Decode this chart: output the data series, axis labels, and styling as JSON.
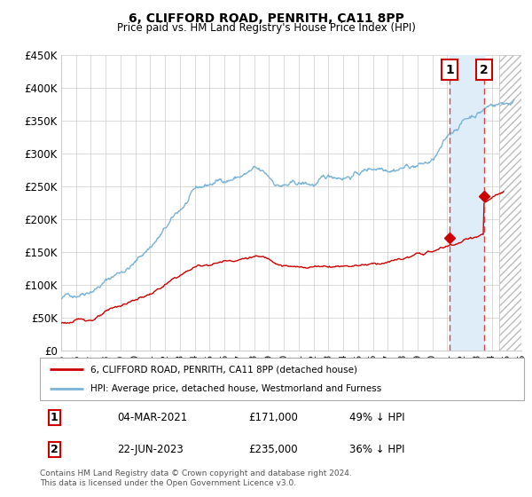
{
  "title": "6, CLIFFORD ROAD, PENRITH, CA11 8PP",
  "subtitle": "Price paid vs. HM Land Registry's House Price Index (HPI)",
  "xmin": 1995.0,
  "xmax": 2026.0,
  "ymin": 0,
  "ymax": 450000,
  "hpi_color": "#7ab4d8",
  "price_color": "#cc0000",
  "marker_color": "#cc0000",
  "dashed_line_color": "#dd4444",
  "highlight_fill": "#deedf8",
  "point1_x": 2021.17,
  "point1_y": 171000,
  "point1_label": "1",
  "point1_date": "04-MAR-2021",
  "point1_price": "£171,000",
  "point1_note": "49% ↓ HPI",
  "point2_x": 2023.47,
  "point2_y": 235000,
  "point2_label": "2",
  "point2_date": "22-JUN-2023",
  "point2_price": "£235,000",
  "point2_note": "36% ↓ HPI",
  "future_start": 2024.5,
  "legend_line1": "6, CLIFFORD ROAD, PENRITH, CA11 8PP (detached house)",
  "legend_line2": "HPI: Average price, detached house, Westmorland and Furness",
  "footer": "Contains HM Land Registry data © Crown copyright and database right 2024.\nThis data is licensed under the Open Government Licence v3.0.",
  "yticks": [
    0,
    50000,
    100000,
    150000,
    200000,
    250000,
    300000,
    350000,
    400000,
    450000
  ],
  "ytick_labels": [
    "£0",
    "£50K",
    "£100K",
    "£150K",
    "£200K",
    "£250K",
    "£300K",
    "£350K",
    "£400K",
    "£450K"
  ],
  "xtick_years": [
    1995,
    1996,
    1997,
    1998,
    1999,
    2000,
    2001,
    2002,
    2003,
    2004,
    2005,
    2006,
    2007,
    2008,
    2009,
    2010,
    2011,
    2012,
    2013,
    2014,
    2015,
    2016,
    2017,
    2018,
    2019,
    2020,
    2021,
    2022,
    2023,
    2024,
    2025,
    2026
  ]
}
